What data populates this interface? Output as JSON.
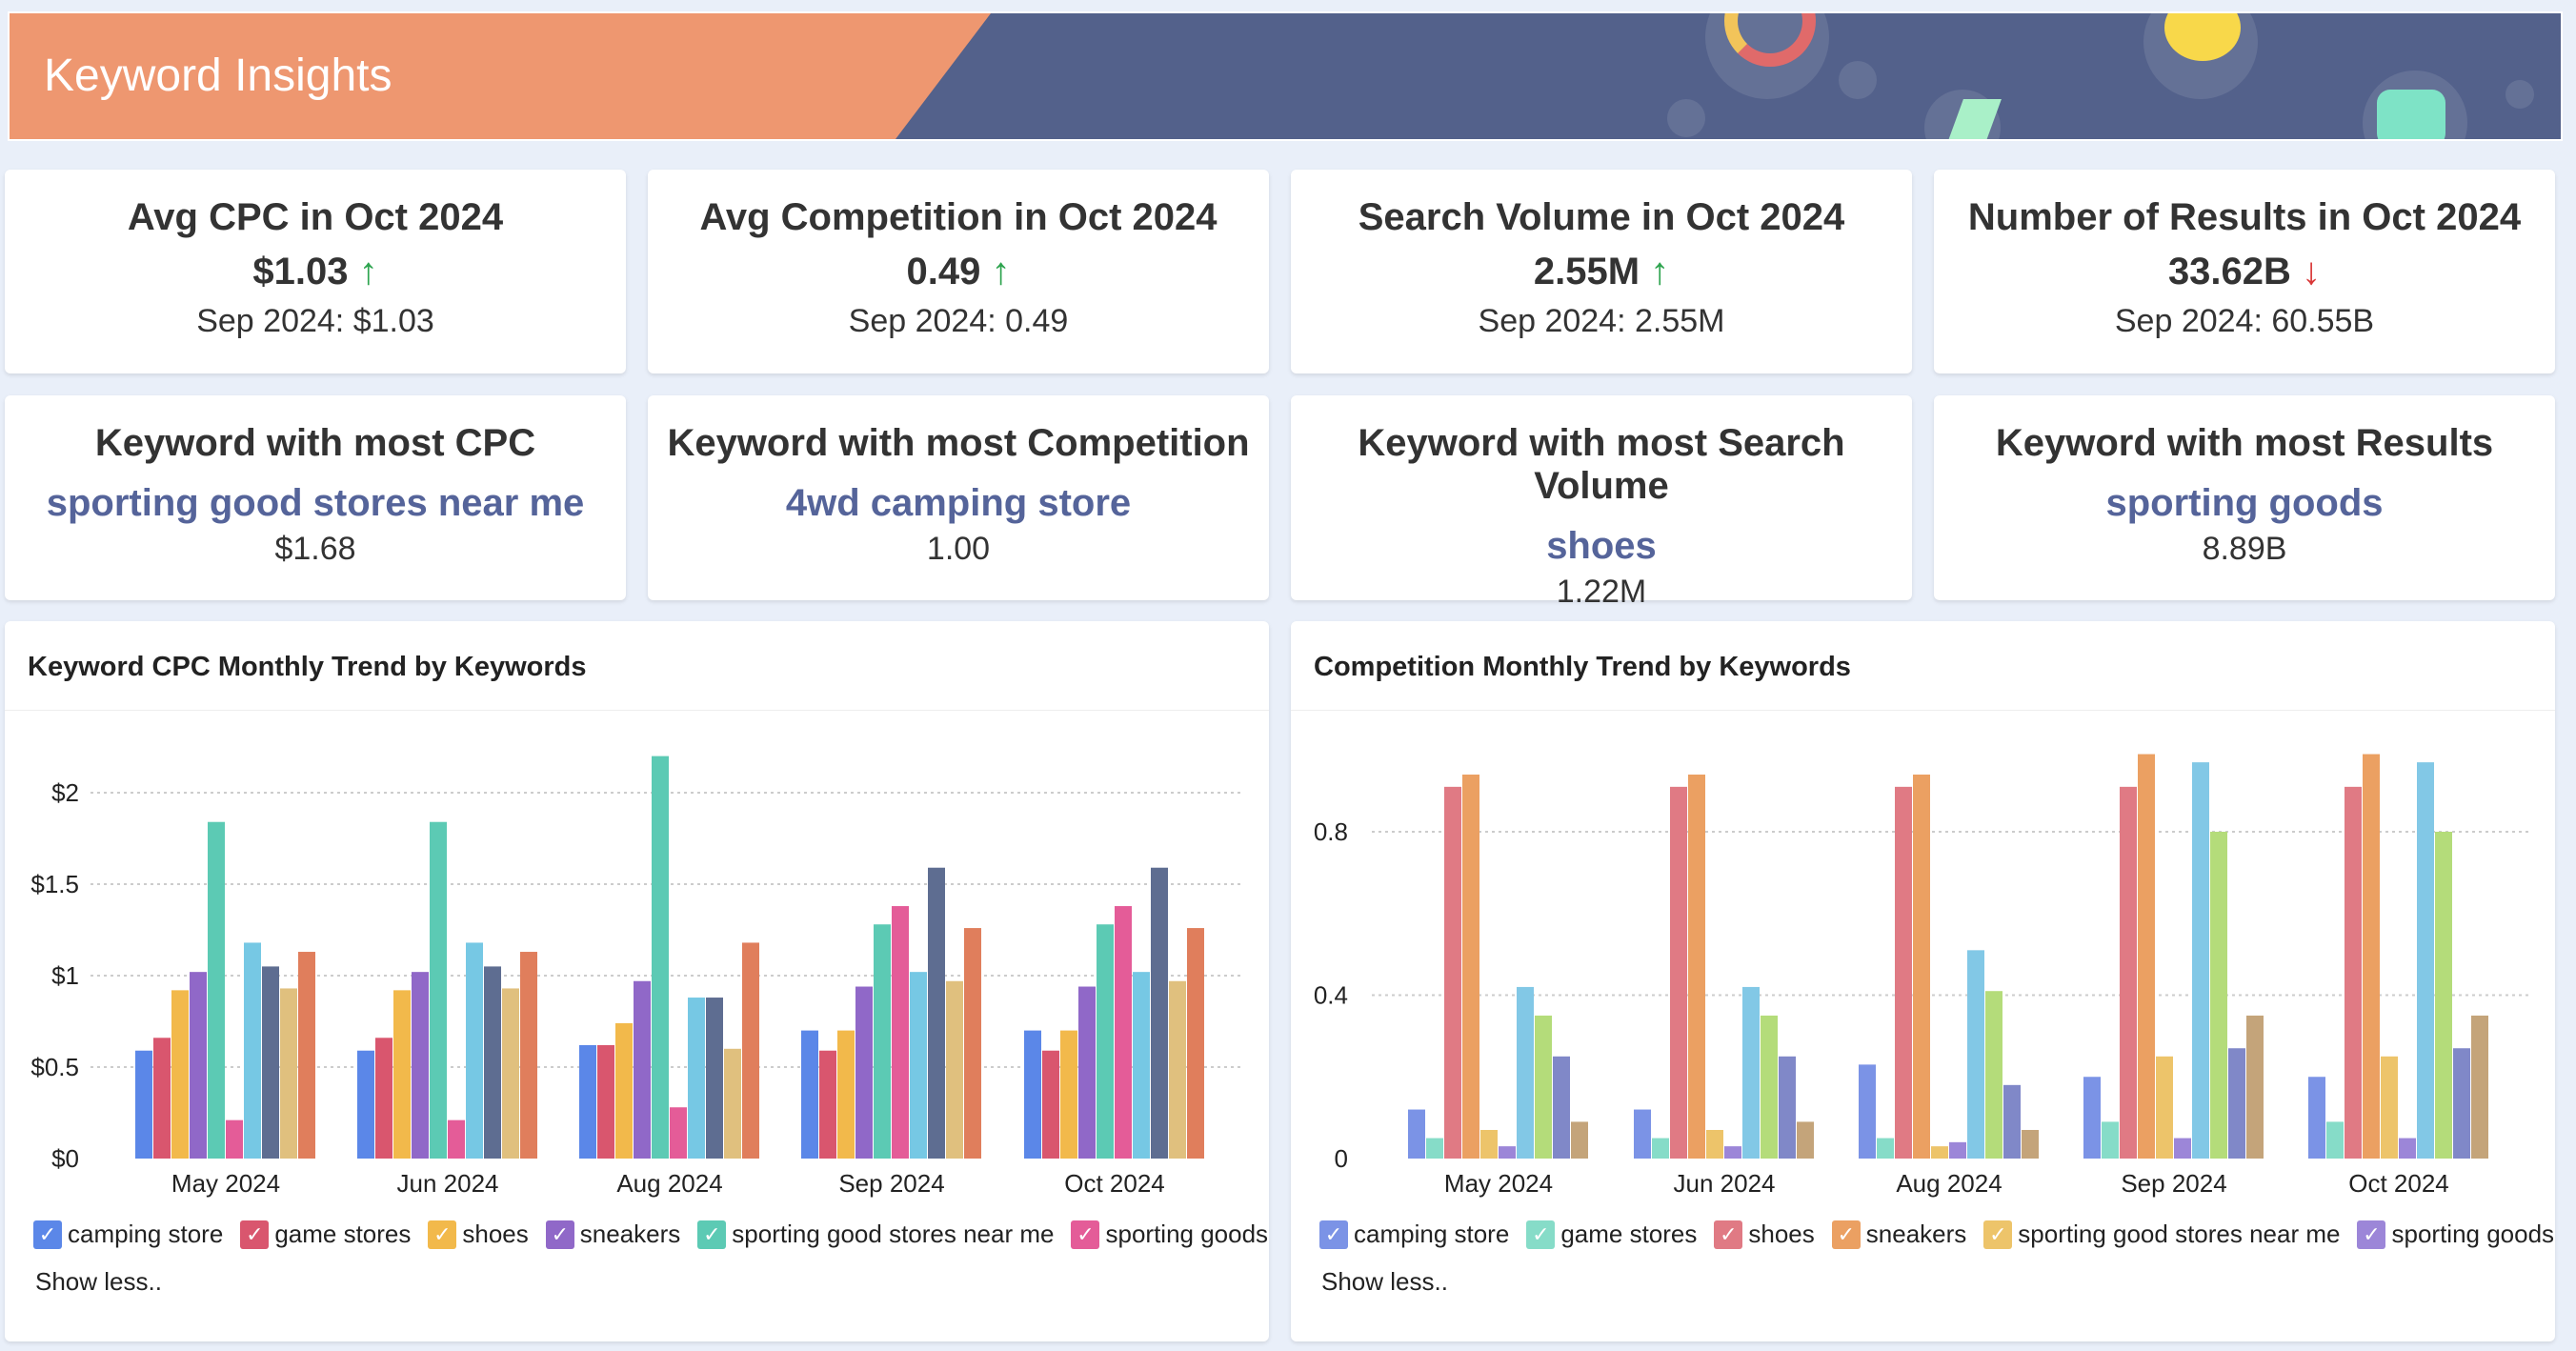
{
  "header": {
    "title": "Keyword Insights"
  },
  "kpis": [
    {
      "title": "Avg CPC in Oct 2024",
      "value": "$1.03",
      "trend": "↑",
      "trend_dir": "up",
      "previous": "Sep 2024: $1.03"
    },
    {
      "title": "Avg Competition in Oct 2024",
      "value": "0.49",
      "trend": "↑",
      "trend_dir": "up",
      "previous": "Sep 2024: 0.49"
    },
    {
      "title": "Search Volume in Oct 2024",
      "value": "2.55M",
      "trend": "↑",
      "trend_dir": "up",
      "previous": "Sep 2024: 2.55M"
    },
    {
      "title": "Number of Results in Oct 2024",
      "value": "33.62B",
      "trend": "↓",
      "trend_dir": "down",
      "previous": "Sep 2024: 60.55B"
    }
  ],
  "top_keywords": [
    {
      "title": "Keyword with most CPC",
      "keyword": "sporting good stores near me",
      "value": "$1.68"
    },
    {
      "title": "Keyword with most Competition",
      "keyword": "4wd camping store",
      "value": "1.00"
    },
    {
      "title": "Keyword with most Search Volume",
      "keyword": "shoes",
      "value": "1.22M"
    },
    {
      "title": "Keyword with most Results",
      "keyword": "sporting goods",
      "value": "8.89B"
    }
  ],
  "show_less": "Show less..",
  "chart_data": [
    {
      "type": "bar",
      "title": "Keyword CPC Monthly Trend by Keywords",
      "categories": [
        "May 2024",
        "Jun 2024",
        "Aug 2024",
        "Sep 2024",
        "Oct 2024"
      ],
      "yticks": [
        "$0",
        "$0.5",
        "$1",
        "$1.5",
        "$2"
      ],
      "ytick_values": [
        0,
        0.5,
        1,
        1.5,
        2
      ],
      "ylim": [
        0,
        2.3
      ],
      "legend": [
        "camping store",
        "game stores",
        "shoes",
        "sneakers",
        "sporting good stores near me",
        "sporting goods"
      ],
      "colors": [
        "#5b87e8",
        "#d9566e",
        "#f2b94b",
        "#9068c8",
        "#5ccab4",
        "#e45c98",
        "#76c8e4",
        "#5e6d91",
        "#e0c07e",
        "#e07e5c"
      ],
      "series": [
        {
          "name": "camping store",
          "values": [
            0.59,
            0.59,
            0.62,
            0.7,
            0.7
          ]
        },
        {
          "name": "game stores",
          "values": [
            0.66,
            0.66,
            0.62,
            0.59,
            0.59
          ]
        },
        {
          "name": "shoes",
          "values": [
            0.92,
            0.92,
            0.74,
            0.7,
            0.7
          ]
        },
        {
          "name": "sneakers",
          "values": [
            1.02,
            1.02,
            0.97,
            0.94,
            0.94
          ]
        },
        {
          "name": "sporting good stores near me",
          "values": [
            1.84,
            1.84,
            2.2,
            1.28,
            1.28
          ]
        },
        {
          "name": "sporting goods",
          "values": [
            0.21,
            0.21,
            0.28,
            1.38,
            1.38
          ]
        },
        {
          "name": "series 7",
          "values": [
            1.18,
            1.18,
            0.88,
            1.02,
            1.02
          ]
        },
        {
          "name": "series 8",
          "values": [
            1.05,
            1.05,
            0.88,
            1.59,
            1.59
          ]
        },
        {
          "name": "series 9",
          "values": [
            0.93,
            0.93,
            0.6,
            0.97,
            0.97
          ]
        },
        {
          "name": "series 10",
          "values": [
            1.13,
            1.13,
            1.18,
            1.26,
            1.26
          ]
        }
      ]
    },
    {
      "type": "bar",
      "title": "Competition Monthly Trend by Keywords",
      "categories": [
        "May 2024",
        "Jun 2024",
        "Aug 2024",
        "Sep 2024",
        "Oct 2024"
      ],
      "yticks": [
        "0",
        "0.4",
        "0.8"
      ],
      "ytick_values": [
        0,
        0.4,
        0.8
      ],
      "ylim": [
        0,
        1.0
      ],
      "legend": [
        "camping store",
        "game stores",
        "shoes",
        "sneakers",
        "sporting good stores near me",
        "sporting goods"
      ],
      "colors": [
        "#7b93e6",
        "#86dcc8",
        "#e07a84",
        "#eba062",
        "#edc46a",
        "#9c86d8",
        "#82c8e6",
        "#b4dc7a",
        "#8088c8",
        "#c4a47a"
      ],
      "series": [
        {
          "name": "camping store",
          "values": [
            0.12,
            0.12,
            0.23,
            0.2,
            0.2
          ]
        },
        {
          "name": "game stores",
          "values": [
            0.05,
            0.05,
            0.05,
            0.09,
            0.09
          ]
        },
        {
          "name": "shoes",
          "values": [
            0.91,
            0.91,
            0.91,
            0.91,
            0.91
          ]
        },
        {
          "name": "sneakers",
          "values": [
            0.94,
            0.94,
            0.94,
            0.99,
            0.99
          ]
        },
        {
          "name": "sporting good stores near me",
          "values": [
            0.07,
            0.07,
            0.03,
            0.25,
            0.25
          ]
        },
        {
          "name": "sporting goods",
          "values": [
            0.03,
            0.03,
            0.04,
            0.05,
            0.05
          ]
        },
        {
          "name": "series 7",
          "values": [
            0.42,
            0.42,
            0.51,
            0.97,
            0.97
          ]
        },
        {
          "name": "series 8",
          "values": [
            0.35,
            0.35,
            0.41,
            0.8,
            0.8
          ]
        },
        {
          "name": "series 9",
          "values": [
            0.25,
            0.25,
            0.18,
            0.27,
            0.27
          ]
        },
        {
          "name": "series 10",
          "values": [
            0.09,
            0.09,
            0.07,
            0.35,
            0.35
          ]
        }
      ]
    }
  ]
}
